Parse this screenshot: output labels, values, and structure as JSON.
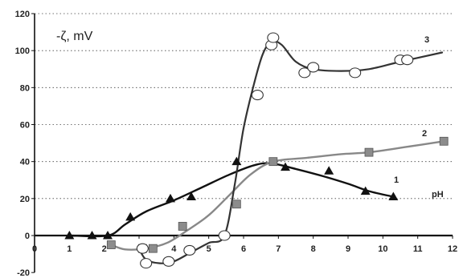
{
  "chart_data": {
    "type": "line",
    "title": "",
    "ylabel": "-ζ, mV",
    "xlabel": "pH",
    "xlim": [
      0,
      12
    ],
    "ylim": [
      -20,
      120
    ],
    "xticks": [
      0,
      1,
      2,
      3,
      4,
      5,
      6,
      7,
      8,
      9,
      10,
      11,
      12
    ],
    "yticks": [
      -20,
      0,
      20,
      40,
      60,
      80,
      100,
      120
    ],
    "grid": "dashed-horizontal",
    "series": [
      {
        "name": "1",
        "marker": "triangle",
        "color": "#111111",
        "points": [
          [
            1.0,
            0
          ],
          [
            1.65,
            0
          ],
          [
            2.1,
            0
          ],
          [
            2.75,
            10
          ],
          [
            3.9,
            20
          ],
          [
            4.5,
            21
          ],
          [
            5.8,
            40
          ],
          [
            7.2,
            37
          ],
          [
            8.45,
            35
          ],
          [
            9.5,
            24
          ],
          [
            10.3,
            21
          ]
        ],
        "curve": [
          [
            1.0,
            0
          ],
          [
            2.1,
            0
          ],
          [
            2.6,
            6
          ],
          [
            3.2,
            13
          ],
          [
            4.0,
            19
          ],
          [
            4.8,
            26
          ],
          [
            5.6,
            33
          ],
          [
            6.3,
            38
          ],
          [
            6.8,
            39
          ],
          [
            7.5,
            36
          ],
          [
            8.3,
            32
          ],
          [
            9.0,
            28
          ],
          [
            9.6,
            24
          ],
          [
            10.3,
            21
          ]
        ]
      },
      {
        "name": "2",
        "marker": "square",
        "color": "#888888",
        "points": [
          [
            2.2,
            -5
          ],
          [
            3.1,
            -7
          ],
          [
            3.4,
            -7
          ],
          [
            4.25,
            5
          ],
          [
            5.8,
            17
          ],
          [
            6.85,
            40
          ],
          [
            9.6,
            45
          ],
          [
            11.75,
            51
          ]
        ],
        "curve": [
          [
            2.2,
            -5
          ],
          [
            2.6,
            -7.5
          ],
          [
            3.2,
            -7
          ],
          [
            3.8,
            -4
          ],
          [
            4.4,
            3
          ],
          [
            5.0,
            11
          ],
          [
            5.6,
            22
          ],
          [
            6.2,
            33
          ],
          [
            6.85,
            40
          ],
          [
            7.8,
            42
          ],
          [
            8.8,
            44
          ],
          [
            9.6,
            45
          ],
          [
            10.7,
            48
          ],
          [
            11.75,
            51
          ]
        ]
      },
      {
        "name": "3",
        "marker": "circle",
        "color": "#333333",
        "points": [
          [
            3.1,
            -7
          ],
          [
            3.2,
            -15
          ],
          [
            3.85,
            -14
          ],
          [
            4.45,
            -8
          ],
          [
            5.45,
            0
          ],
          [
            6.4,
            76
          ],
          [
            6.8,
            103
          ],
          [
            6.85,
            107
          ],
          [
            7.75,
            88
          ],
          [
            8.0,
            91
          ],
          [
            9.2,
            88
          ],
          [
            10.5,
            95
          ],
          [
            10.7,
            95
          ]
        ],
        "curve": [
          [
            3.0,
            -7
          ],
          [
            3.2,
            -13
          ],
          [
            3.6,
            -15
          ],
          [
            4.0,
            -14
          ],
          [
            4.5,
            -9
          ],
          [
            5.0,
            -4
          ],
          [
            5.45,
            0
          ],
          [
            5.75,
            28
          ],
          [
            6.0,
            58
          ],
          [
            6.3,
            82
          ],
          [
            6.55,
            98
          ],
          [
            6.8,
            105
          ],
          [
            7.1,
            103
          ],
          [
            7.5,
            94
          ],
          [
            8.0,
            90
          ],
          [
            8.8,
            89
          ],
          [
            9.6,
            90
          ],
          [
            10.5,
            94
          ],
          [
            11.7,
            99
          ]
        ]
      }
    ]
  }
}
